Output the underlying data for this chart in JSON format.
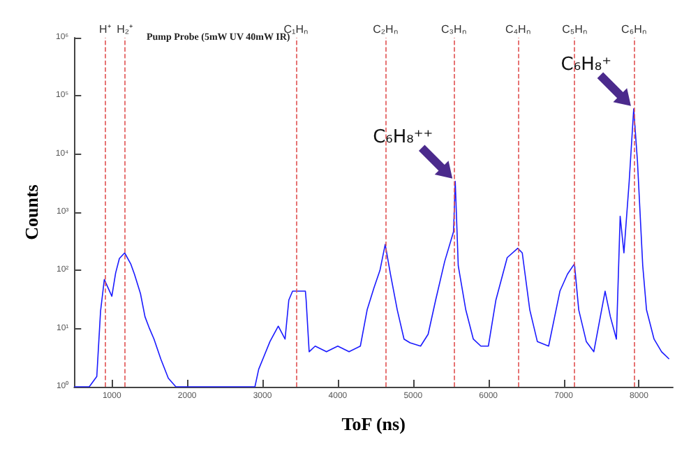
{
  "chart_data": {
    "type": "line",
    "title": "Pump Probe (5mW UV 40mW IR)",
    "xlabel": "ToF (ns)",
    "ylabel": "Counts",
    "log": "y",
    "grid": false,
    "marker": "none",
    "line_style": "solid",
    "xlim": [
      500,
      8450
    ],
    "xticks": [
      1000,
      2000,
      3000,
      4000,
      5000,
      6000,
      7000,
      8000
    ],
    "ylim": [
      1,
      1000000
    ],
    "yticks": [
      {
        "value": 1,
        "label": "10⁰"
      },
      {
        "value": 10,
        "label": "10¹"
      },
      {
        "value": 100,
        "label": "10²"
      },
      {
        "value": 1000,
        "label": "10³"
      },
      {
        "value": 10000,
        "label": "10⁴"
      },
      {
        "value": 100000,
        "label": "10⁵"
      },
      {
        "value": 1000000,
        "label": "10⁶"
      }
    ],
    "series": [
      {
        "color": "#1a1aff",
        "x": [
          500,
          700,
          800,
          850,
          900,
          950,
          1000,
          1050,
          1100,
          1170,
          1250,
          1300,
          1380,
          1440,
          1500,
          1560,
          1650,
          1750,
          1850,
          2900,
          2950,
          3100,
          3210,
          3300,
          3350,
          3400,
          3500,
          3570,
          3580,
          3620,
          3700,
          3850,
          4000,
          4150,
          4300,
          4390,
          4480,
          4560,
          4630,
          4700,
          4790,
          4880,
          4960,
          5100,
          5200,
          5300,
          5420,
          5537,
          5560,
          5600,
          5700,
          5800,
          5900,
          6000,
          6100,
          6250,
          6390,
          6450,
          6550,
          6650,
          6800,
          6950,
          7050,
          7143,
          7200,
          7300,
          7400,
          7550,
          7620,
          7700,
          7750,
          7800,
          7870,
          7930,
          7980,
          8050,
          8100,
          8200,
          8300,
          8400
        ],
        "values": [
          1,
          1,
          1.5,
          20,
          70,
          50,
          36,
          90,
          160,
          200,
          130,
          86,
          40,
          16,
          10,
          6.6,
          3,
          1.4,
          1,
          1,
          2,
          6,
          11,
          6.6,
          31,
          44,
          44,
          44,
          31,
          4,
          5,
          4,
          5,
          4,
          5,
          21,
          50,
          100,
          280,
          86,
          21,
          6.6,
          5.7,
          5,
          8,
          31,
          143,
          460,
          3400,
          120,
          21,
          6.6,
          5,
          5,
          31,
          166,
          240,
          200,
          21,
          6,
          5,
          44,
          86,
          130,
          21,
          6,
          4,
          44,
          16,
          6.6,
          850,
          200,
          3400,
          60000,
          7400,
          120,
          21,
          6.6,
          4,
          3
        ]
      }
    ],
    "ref_lines": [
      {
        "axis": "x",
        "value": 913,
        "label": "H⁺",
        "color": "#e05050",
        "line_style": "dashed"
      },
      {
        "axis": "x",
        "value": 1175,
        "label": "H₂⁺",
        "color": "#e05050",
        "line_style": "dashed"
      },
      {
        "axis": "x",
        "value": 3443,
        "label": "C₁Hₙ",
        "color": "#e05050",
        "line_style": "dashed"
      },
      {
        "axis": "x",
        "value": 4630,
        "label": "C₂Hₙ",
        "color": "#e05050",
        "line_style": "dashed"
      },
      {
        "axis": "x",
        "value": 5537,
        "label": "C₃Hₙ",
        "color": "#e05050",
        "line_style": "dashed"
      },
      {
        "axis": "x",
        "value": 6390,
        "label": "C₄Hₙ",
        "color": "#e05050",
        "line_style": "dashed"
      },
      {
        "axis": "x",
        "value": 7143,
        "label": "C₅Hₙ",
        "color": "#e05050",
        "line_style": "dashed"
      },
      {
        "axis": "x",
        "value": 7930,
        "label": "C₆Hₙ",
        "color": "#e05050",
        "line_style": "dashed"
      }
    ],
    "annotations": [
      {
        "text": "C₆H₈⁺⁺",
        "x": 5560,
        "y": 3400
      },
      {
        "text": "C₆H₈⁺",
        "x": 7930,
        "y": 60000
      }
    ]
  }
}
